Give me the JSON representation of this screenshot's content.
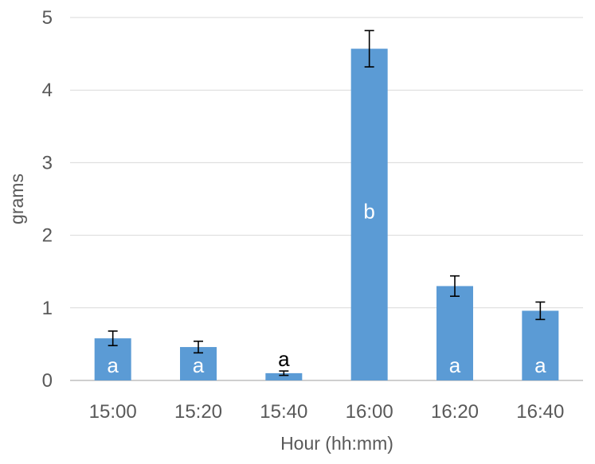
{
  "chart_data": {
    "type": "bar",
    "title": "",
    "xlabel": "Hour (hh:mm)",
    "ylabel": "grams",
    "categories": [
      "15:00",
      "15:20",
      "15:40",
      "16:00",
      "16:20",
      "16:40"
    ],
    "values": [
      0.58,
      0.46,
      0.1,
      4.57,
      1.3,
      0.96
    ],
    "errors": [
      0.1,
      0.08,
      0.03,
      0.25,
      0.14,
      0.12
    ],
    "letters": [
      "a",
      "a",
      "a",
      "b",
      "a",
      "a"
    ],
    "ylim": [
      0,
      5
    ],
    "yticks": [
      "0",
      "1",
      "2",
      "3",
      "4",
      "5"
    ],
    "grid": true,
    "bar_color": "#5B9BD5",
    "letter_inside_color": "#ffffff",
    "letter_outside_color": "#000000",
    "gridline_color": "#d9d9d9",
    "axis_color": "#bfbfbf",
    "error_bar_color": "#000000"
  }
}
